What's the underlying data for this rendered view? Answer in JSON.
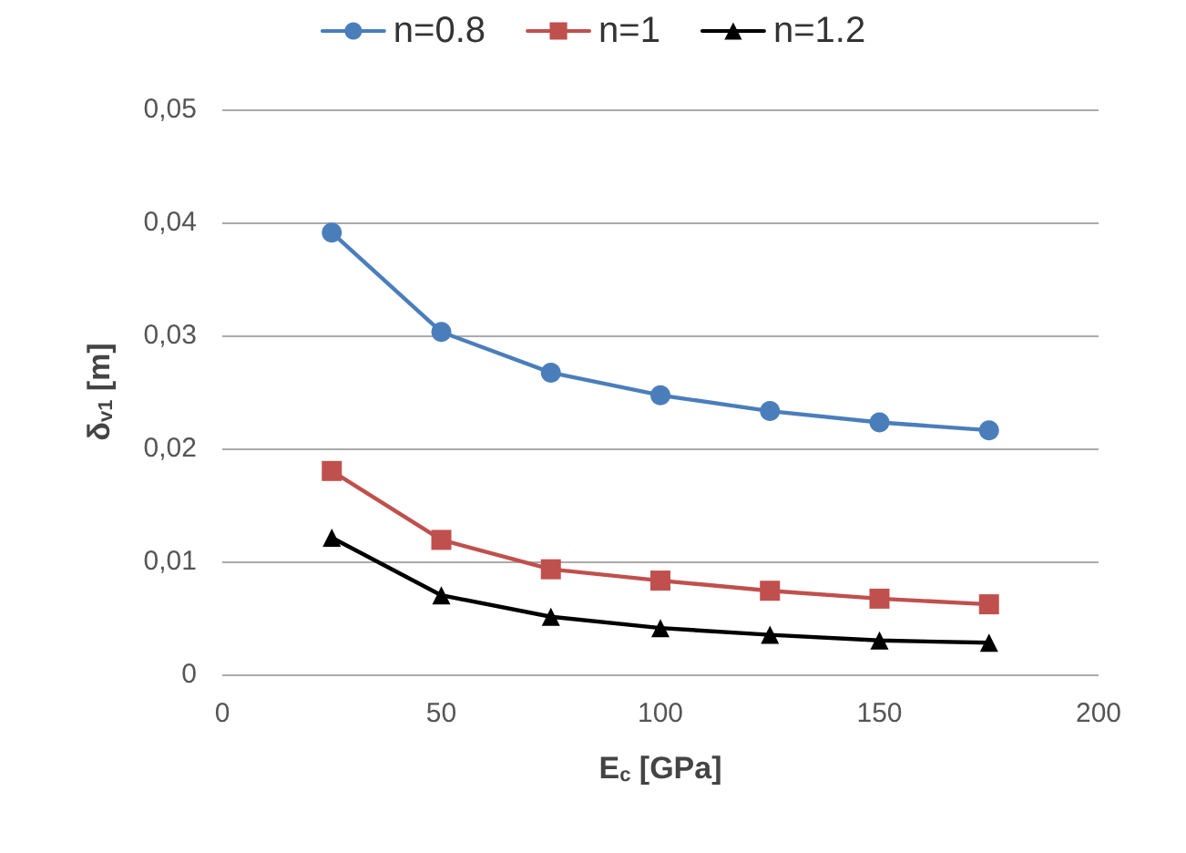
{
  "chart_data": {
    "type": "line",
    "xlabel": "E$_{c}$ [GPa]",
    "ylabel": "δ$_{v1}$ [m]",
    "x": [
      25,
      50,
      75,
      100,
      125,
      150,
      175
    ],
    "series": [
      {
        "name": "n=0.8",
        "color": "#4a7ebb",
        "marker": "circle",
        "values": [
          0.0391,
          0.0303,
          0.0267,
          0.0247,
          0.0233,
          0.0223,
          0.0216
        ]
      },
      {
        "name": "n=1",
        "color": "#c0504d",
        "marker": "square",
        "values": [
          0.018,
          0.0119,
          0.0093,
          0.0083,
          0.0074,
          0.0067,
          0.0062
        ]
      },
      {
        "name": "n=1.2",
        "color": "#000000",
        "marker": "triangle",
        "values": [
          0.0121,
          0.007,
          0.0051,
          0.0041,
          0.0035,
          0.003,
          0.0028
        ]
      }
    ],
    "xlim": [
      0,
      200
    ],
    "xticks": [
      0,
      50,
      100,
      150,
      200
    ],
    "ylim": [
      0,
      0.05
    ],
    "yticks": [
      {
        "value": 0,
        "label": "0"
      },
      {
        "value": 0.01,
        "label": "0,01"
      },
      {
        "value": 0.02,
        "label": "0,02"
      },
      {
        "value": 0.03,
        "label": "0,03"
      },
      {
        "value": 0.04,
        "label": "0,04"
      },
      {
        "value": 0.05,
        "label": "0,05"
      }
    ],
    "grid": "y",
    "legend": "top",
    "line_style": "solid"
  }
}
